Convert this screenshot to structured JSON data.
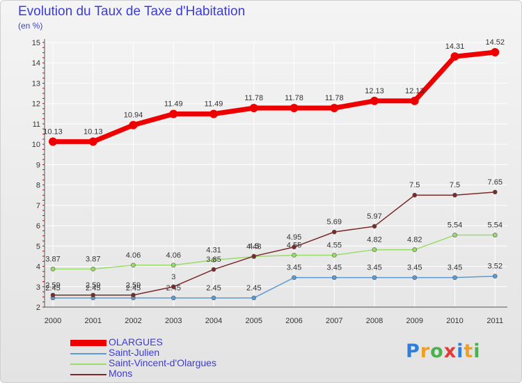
{
  "header": {
    "title": "Evolution du Taux de Taxe d'Habitation",
    "subtitle": "(en %)"
  },
  "chart_data": {
    "type": "line",
    "title": "Evolution du Taux de Taxe d'Habitation",
    "ylabel": "(en %)",
    "xlabel": "",
    "x": [
      "2000",
      "2001",
      "2002",
      "2003",
      "2004",
      "2005",
      "2006",
      "2007",
      "2008",
      "2009",
      "2010",
      "2011"
    ],
    "ylim": [
      2,
      15
    ],
    "yticks": [
      "2",
      "3",
      "4",
      "5",
      "6",
      "7",
      "8",
      "9",
      "10",
      "11",
      "12",
      "13",
      "14",
      "15"
    ],
    "grid": true,
    "legend_position": "bottom-left",
    "series": [
      {
        "name": "OLARGUES",
        "color": "#ee0000",
        "values": [
          10.13,
          10.13,
          10.94,
          11.49,
          11.49,
          11.78,
          11.78,
          11.78,
          12.13,
          12.13,
          14.31,
          14.52
        ],
        "labels": [
          "10.13",
          "10.13",
          "10.94",
          "11.49",
          "11.49",
          "11.78",
          "11.78",
          "11.78",
          "12.13",
          "12.13",
          "14.31",
          "14.52"
        ]
      },
      {
        "name": "Saint-Julien",
        "color": "#5b9bd5",
        "values": [
          2.45,
          2.45,
          2.45,
          2.45,
          2.45,
          2.45,
          3.45,
          3.45,
          3.45,
          3.45,
          3.45,
          3.52
        ],
        "labels": [
          "2.45",
          "2.45",
          "2.45",
          "2.45",
          "2.45",
          "2.45",
          "3.45",
          "3.45",
          "3.45",
          "3.45",
          "3.45",
          "3.52"
        ]
      },
      {
        "name": "Saint-Vincent-d'Olargues",
        "color": "#99dd66",
        "values": [
          3.87,
          3.87,
          4.06,
          4.06,
          4.31,
          4.48,
          4.55,
          4.55,
          4.82,
          4.82,
          5.54,
          5.54
        ],
        "labels": [
          "3.87",
          "3.87",
          "4.06",
          "4.06",
          "4.31",
          "4.48",
          "4.55",
          "4.55",
          "4.82",
          "4.82",
          "5.54",
          "5.54"
        ]
      },
      {
        "name": "Mons",
        "color": "#7a2a2a",
        "values": [
          2.59,
          2.59,
          2.59,
          3,
          3.85,
          4.5,
          4.95,
          5.69,
          5.97,
          7.5,
          7.5,
          7.65
        ],
        "labels": [
          "2.59",
          "2.59",
          "2.59",
          "3",
          "3.85",
          "4.5",
          "4.95",
          "5.69",
          "5.97",
          "7.5",
          "7.5",
          "7.65"
        ]
      }
    ]
  },
  "logo": {
    "letters": [
      "P",
      "r",
      "o",
      "x",
      "i",
      "t",
      "i"
    ],
    "colors": [
      "#2f7fd8",
      "#f0a020",
      "#4caf50",
      "#e53935",
      "#2f7fd8",
      "#f0a020",
      "#4caf50"
    ]
  }
}
